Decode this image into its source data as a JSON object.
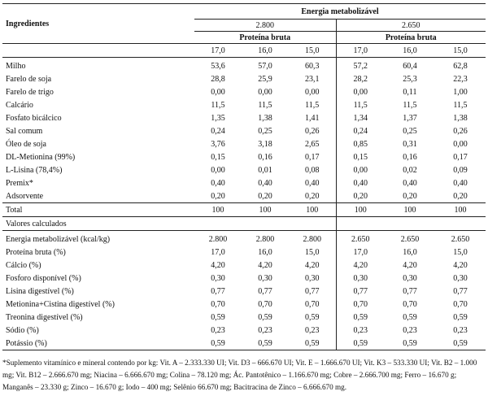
{
  "header": {
    "ingredients": "Ingredientes",
    "energy": "Energia metabolizável",
    "energy_levels": [
      "2.800",
      "2.650"
    ],
    "protein": "Proteína bruta",
    "protein_levels": [
      "17,0",
      "16,0",
      "15,0",
      "17,0",
      "16,0",
      "15,0"
    ]
  },
  "ingredients": [
    {
      "name": "Milho",
      "values": [
        "53,6",
        "57,0",
        "60,3",
        "57,2",
        "60,4",
        "62,8"
      ]
    },
    {
      "name": "Farelo de soja",
      "values": [
        "28,8",
        "25,9",
        "23,1",
        "28,2",
        "25,3",
        "22,3"
      ]
    },
    {
      "name": "Farelo de trigo",
      "values": [
        "0,00",
        "0,00",
        "0,00",
        "0,00",
        "0,11",
        "1,00"
      ]
    },
    {
      "name": "Calcário",
      "values": [
        "11,5",
        "11,5",
        "11,5",
        "11,5",
        "11,5",
        "11,5"
      ]
    },
    {
      "name": "Fosfato bicálcico",
      "values": [
        "1,35",
        "1,38",
        "1,41",
        "1,34",
        "1,37",
        "1,38"
      ]
    },
    {
      "name": "Sal comum",
      "values": [
        "0,24",
        "0,25",
        "0,26",
        "0,24",
        "0,25",
        "0,26"
      ]
    },
    {
      "name": "Óleo de soja",
      "values": [
        "3,76",
        "3,18",
        "2,65",
        "0,85",
        "0,31",
        "0,00"
      ]
    },
    {
      "name": "DL-Metionina (99%)",
      "values": [
        "0,15",
        "0,16",
        "0,17",
        "0,15",
        "0,16",
        "0,17"
      ]
    },
    {
      "name": "L-Lisina (78,4%)",
      "values": [
        "0,00",
        "0,01",
        "0,08",
        "0,00",
        "0,02",
        "0,09"
      ]
    },
    {
      "name": "Premix*",
      "values": [
        "0,40",
        "0,40",
        "0,40",
        "0,40",
        "0,40",
        "0,40"
      ]
    },
    {
      "name": "Adsorvente",
      "values": [
        "0,20",
        "0,20",
        "0,20",
        "0,20",
        "0,20",
        "0,20"
      ]
    }
  ],
  "total": {
    "name": "Total",
    "values": [
      "100",
      "100",
      "100",
      "100",
      "100",
      "100"
    ]
  },
  "calc_label": "Valores calculados",
  "calculated": [
    {
      "name": "Energia metabolizável (kcal/kg)",
      "values": [
        "2.800",
        "2.800",
        "2.800",
        "2.650",
        "2.650",
        "2.650"
      ]
    },
    {
      "name": "Proteína bruta (%)",
      "values": [
        "17,0",
        "16,0",
        "15,0",
        "17,0",
        "16,0",
        "15,0"
      ]
    },
    {
      "name": "Cálcio (%)",
      "values": [
        "4,20",
        "4,20",
        "4,20",
        "4,20",
        "4,20",
        "4,20"
      ]
    },
    {
      "name": "Fosforo disponível (%)",
      "values": [
        "0,30",
        "0,30",
        "0,30",
        "0,30",
        "0,30",
        "0,30"
      ]
    },
    {
      "name": "Lisina digestível (%)",
      "values": [
        "0,77",
        "0,77",
        "0,77",
        "0,77",
        "0,77",
        "0,77"
      ]
    },
    {
      "name": "Metionina+Cistina digestível (%)",
      "values": [
        "0,70",
        "0,70",
        "0,70",
        "0,70",
        "0,70",
        "0,70"
      ]
    },
    {
      "name": "Treonina digestível (%)",
      "values": [
        "0,59",
        "0,59",
        "0,59",
        "0,59",
        "0,59",
        "0,59"
      ]
    },
    {
      "name": "Sódio (%)",
      "values": [
        "0,23",
        "0,23",
        "0,23",
        "0,23",
        "0,23",
        "0,23"
      ]
    },
    {
      "name": "Potássio (%)",
      "values": [
        "0,59",
        "0,59",
        "0,59",
        "0,59",
        "0,59",
        "0,59"
      ]
    }
  ],
  "footnote": "*Suplemento vitamínico e mineral contendo por kg: Vit. A – 2.333.330 UI; Vit. D3 – 666.670 UI; Vit. E – 1.666.670 UI; Vit. K3 – 533.330 UI; Vit. B2 – 1.000 mg; Vit. B12 – 2.666.670 mg; Niacina – 6.666.670 mg; Colina – 78.120 mg; Ác. Pantotênico – 1.166.670 mg; Cobre – 2.666.700 mg; Ferro – 16.670 g; Manganês – 23.330 g; Zinco – 16.670 g; Iodo – 400 mg; Selênio 66.670 mg; Bacitracina de Zinco – 6.666.670 mg."
}
